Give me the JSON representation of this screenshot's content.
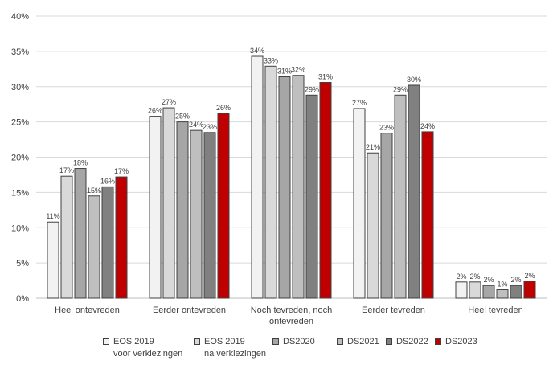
{
  "chart_data": {
    "type": "bar",
    "categories": [
      [
        "Heel ontevreden"
      ],
      [
        "Eerder ontevreden"
      ],
      [
        "Noch tevreden, noch",
        "ontevreden"
      ],
      [
        "Eerder tevreden"
      ],
      [
        "Heel tevreden"
      ]
    ],
    "series": [
      {
        "name": [
          "EOS 2019",
          "voor verkiezingen"
        ],
        "color": "#f2f2f2",
        "values": [
          10.8,
          25.8,
          34.3,
          26.9,
          2.3
        ],
        "labels": [
          "11%",
          "26%",
          "34%",
          "27%",
          "2%"
        ]
      },
      {
        "name": [
          "EOS 2019",
          "na verkiezingen"
        ],
        "color": "#d9d9d9",
        "values": [
          17.3,
          27.0,
          32.9,
          20.6,
          2.3
        ],
        "labels": [
          "17%",
          "27%",
          "33%",
          "21%",
          "2%"
        ]
      },
      {
        "name": [
          "DS2020"
        ],
        "color": "#a6a6a6",
        "values": [
          18.4,
          25.0,
          31.4,
          23.4,
          1.8
        ],
        "labels": [
          "18%",
          "25%",
          "31%",
          "23%",
          "2%"
        ]
      },
      {
        "name": [
          "DS2021"
        ],
        "color": "#bfbfbf",
        "values": [
          14.5,
          23.8,
          31.6,
          28.8,
          1.2
        ],
        "labels": [
          "15%",
          "24%",
          "32%",
          "29%",
          "1%"
        ]
      },
      {
        "name": [
          "DS2022"
        ],
        "color": "#808080",
        "values": [
          15.8,
          23.5,
          28.8,
          30.2,
          1.8
        ],
        "labels": [
          "16%",
          "23%",
          "29%",
          "30%",
          "2%"
        ]
      },
      {
        "name": [
          "DS2023"
        ],
        "color": "#c00000",
        "values": [
          17.2,
          26.2,
          30.6,
          23.6,
          2.4
        ],
        "labels": [
          "17%",
          "26%",
          "31%",
          "24%",
          "2%"
        ]
      }
    ],
    "yticks": [
      "0%",
      "5%",
      "10%",
      "15%",
      "20%",
      "25%",
      "30%",
      "35%",
      "40%"
    ],
    "ylim": [
      0,
      40
    ],
    "grid": true,
    "legend": "bottom",
    "title": "",
    "xlabel": "",
    "ylabel": ""
  }
}
